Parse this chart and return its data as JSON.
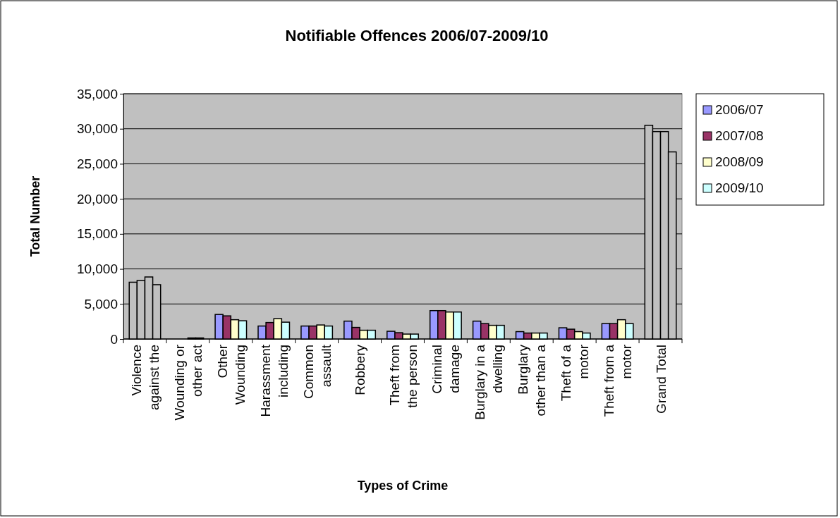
{
  "chart_data": {
    "type": "bar",
    "title": "Notifiable Offences 2006/07-2009/10",
    "xlabel": "Types of Crime",
    "ylabel": "Total Number",
    "categories": [
      "Violence\nagainst the",
      "Wounding or\nother act",
      "Other\nWounding",
      "Harassment\nincluding",
      "Common\nassault",
      "Robbery",
      "Theft from\nthe person",
      "Criminal\ndamage",
      "Burglary in a\ndwelling",
      "Burglary\nother than a",
      "Theft of a\nmotor",
      "Theft from a\nmotor",
      "Grand Total"
    ],
    "series": [
      {
        "name": "2006/07",
        "color": "#9999ff",
        "colors": [
          "#c0c0c0",
          "#9999ff",
          "#9999ff",
          "#9999ff",
          "#9999ff",
          "#9999ff",
          "#9999ff",
          "#9999ff",
          "#9999ff",
          "#9999ff",
          "#9999ff",
          "#9999ff",
          "#c0c0c0"
        ],
        "values": [
          8100,
          0,
          3500,
          1850,
          1850,
          2550,
          1100,
          4050,
          2550,
          1050,
          1600,
          2200,
          30500
        ]
      },
      {
        "name": "2007/08",
        "color": "#993366",
        "colors": [
          "#c0c0c0",
          "#993366",
          "#993366",
          "#993366",
          "#993366",
          "#993366",
          "#993366",
          "#993366",
          "#993366",
          "#993366",
          "#993366",
          "#993366",
          "#c0c0c0"
        ],
        "values": [
          8350,
          0,
          3300,
          2350,
          1850,
          1650,
          900,
          4050,
          2200,
          850,
          1400,
          2200,
          29600
        ]
      },
      {
        "name": "2008/09",
        "color": "#ffffcc",
        "colors": [
          "#c0c0c0",
          "#ffffcc",
          "#ffffcc",
          "#ffffcc",
          "#ffffcc",
          "#ffffcc",
          "#ffffcc",
          "#ffffcc",
          "#ffffcc",
          "#ffffcc",
          "#ffffcc",
          "#ffffcc",
          "#c0c0c0"
        ],
        "values": [
          8850,
          150,
          2750,
          2900,
          2000,
          1250,
          700,
          3850,
          1950,
          850,
          1050,
          2750,
          29600
        ]
      },
      {
        "name": "2009/10",
        "color": "#ccffff",
        "colors": [
          "#c0c0c0",
          "#ccffff",
          "#ccffff",
          "#ccffff",
          "#ccffff",
          "#ccffff",
          "#ccffff",
          "#ccffff",
          "#ccffff",
          "#ccffff",
          "#ccffff",
          "#ccffff",
          "#c0c0c0"
        ],
        "values": [
          7750,
          150,
          2600,
          2400,
          1850,
          1250,
          700,
          3850,
          1950,
          850,
          850,
          2200,
          26700
        ]
      }
    ],
    "ylim": [
      0,
      35000
    ],
    "yticks": [
      {
        "value": 0,
        "label": "0"
      },
      {
        "value": 5000,
        "label": "5,000"
      },
      {
        "value": 10000,
        "label": "10,000"
      },
      {
        "value": 15000,
        "label": "15,000"
      },
      {
        "value": 20000,
        "label": "20,000"
      },
      {
        "value": 25000,
        "label": "25,000"
      },
      {
        "value": 30000,
        "label": "30,000"
      },
      {
        "value": 35000,
        "label": "35,000"
      }
    ],
    "grid": "y",
    "legend": "right"
  }
}
